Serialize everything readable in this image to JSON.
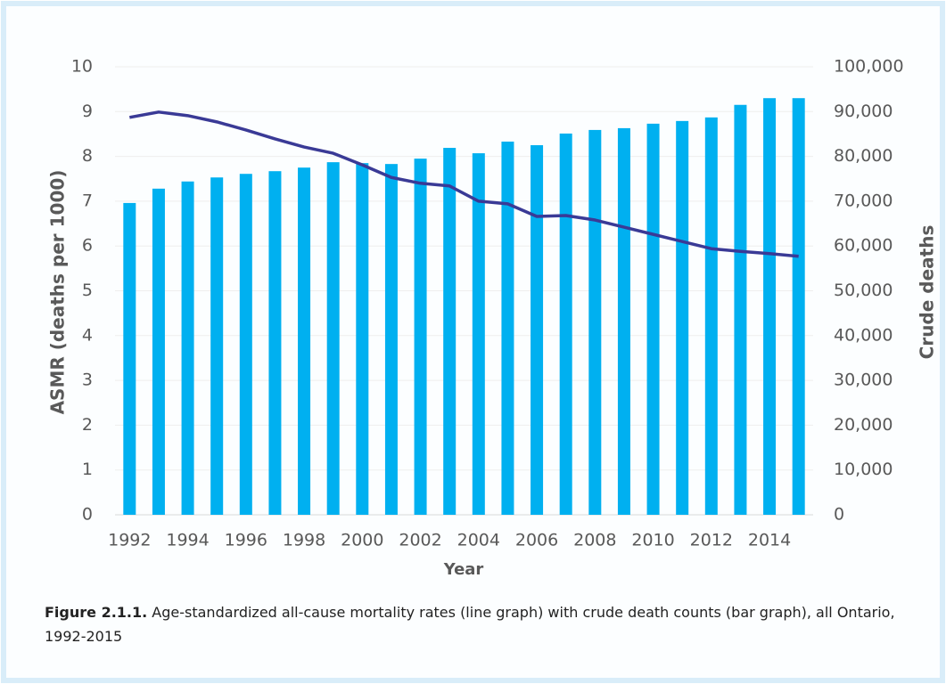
{
  "chart_data": {
    "type": "bar_line",
    "categories": [
      "1992",
      null,
      "1994",
      null,
      "1996",
      null,
      "1998",
      null,
      "2000",
      null,
      "2002",
      null,
      "2004",
      null,
      "2006",
      null,
      "2008",
      null,
      "2010",
      null,
      "2012",
      null,
      "2014",
      null
    ],
    "series": [
      {
        "type": "bar",
        "axis": "y2",
        "color": "#00b0f0",
        "values": [
          69600,
          72800,
          74400,
          75300,
          76100,
          76700,
          77500,
          78700,
          78500,
          78300,
          79500,
          81900,
          80700,
          83300,
          82500,
          85100,
          85900,
          86300,
          87300,
          87900,
          88700,
          91500,
          93000,
          93000
        ]
      },
      {
        "type": "line",
        "axis": "y",
        "color": "#3a3a96",
        "values": [
          8.87,
          8.99,
          8.91,
          8.77,
          8.59,
          8.39,
          8.21,
          8.07,
          7.81,
          7.53,
          7.4,
          7.34,
          7.0,
          6.94,
          6.66,
          6.68,
          6.58,
          6.42,
          6.26,
          6.1,
          5.94,
          5.88,
          5.83,
          5.77
        ]
      }
    ],
    "ylabel": "ASMR (deaths per 1000)",
    "y2label": "Crude deaths",
    "xlabel": "Year",
    "ylim": [
      0,
      10
    ],
    "yticks": [
      0,
      1,
      2,
      3,
      4,
      5,
      6,
      7,
      8,
      9,
      10
    ],
    "y2lim": [
      0,
      100000
    ],
    "y2ticks": [
      0,
      {
        "value": 10000,
        "label": "10,000"
      },
      {
        "value": 20000,
        "label": "20,000"
      },
      {
        "value": 30000,
        "label": "30,000"
      },
      {
        "value": 40000,
        "label": "40,000"
      },
      {
        "value": 50000,
        "label": "50,000"
      },
      {
        "value": 60000,
        "label": "60,000"
      },
      {
        "value": 70000,
        "label": "70,000"
      },
      {
        "value": 80000,
        "label": "80,000"
      },
      {
        "value": 90000,
        "label": "90,000"
      },
      {
        "value": 100000,
        "label": "100,000"
      }
    ],
    "grid": true,
    "caption_label": "Figure 2.1.1.",
    "caption": "Age-standardized all-cause mortality rates (line graph) with crude death counts (bar graph), all Ontario, 1992-2015"
  }
}
